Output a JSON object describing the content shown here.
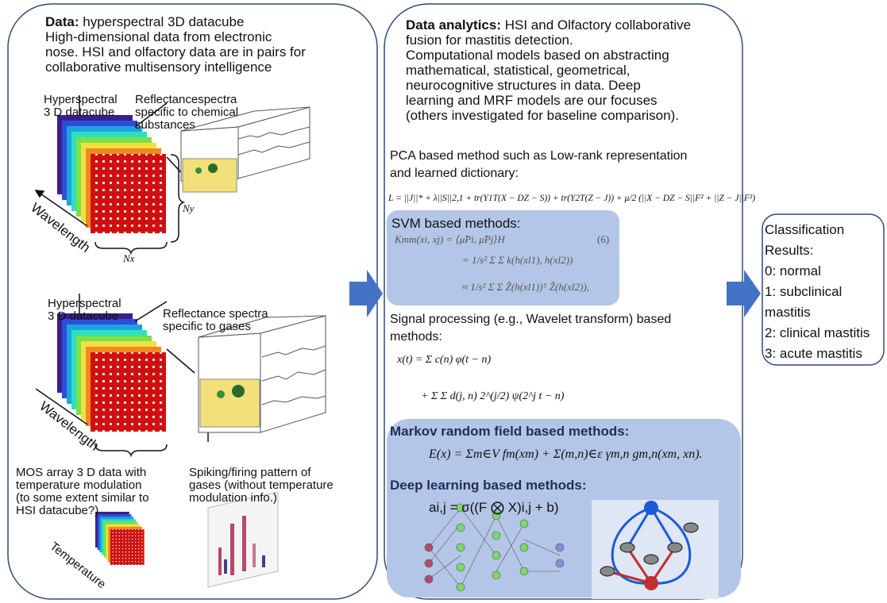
{
  "left": {
    "heading": "Data:",
    "heading_rest": " hyperspectral 3D datacube",
    "lines": [
      "High-dimensional data from electronic",
      "nose. HSI and olfactory data are in pairs for",
      "collaborative multisensory intelligence"
    ],
    "cube1_label": [
      "Hyperspectral",
      "3 D datacube"
    ],
    "spectra1_label": [
      "Reflectancespectra",
      "specific to chemical",
      "substances"
    ],
    "wavelength1": "Wavelength",
    "ny": "Ny",
    "nx": "Nx",
    "cube2_label": [
      "Hyperspectral",
      "3 D datacube"
    ],
    "spectra2_label": [
      "Reflectance spectra",
      "specific to gases"
    ],
    "wavelength2": "Wavelength",
    "mos_label": [
      "MOS array 3 D data with",
      "temperature modulation",
      "(to some extent similar to",
      "HSI datacube?)"
    ],
    "spiking_label": [
      "Spiking/firing pattern of",
      "gases (without temperature",
      "modulation info.)"
    ],
    "temperature": "Temperature"
  },
  "middle": {
    "heading": "Data analytics:",
    "heading_rest": " HSI and Olfactory collaborative",
    "lines": [
      "fusion for mastitis detection.",
      "Computational models based on abstracting",
      "mathematical, statistical, geometrical,",
      "neurocognitive structures in data. Deep",
      "learning and MRF models are our focuses",
      "(others investigated for baseline comparison)."
    ],
    "pca": [
      "PCA based method such as Low-rank representation",
      "and learned dictionary:"
    ],
    "pca_formula": "L = ||J||* + λ||S||2,1 + tr(Y1T(X − DZ − S)) + tr(Y2T(Z − J)) + μ/2 (||X − DZ − S||F² + ||Z − J||F²)",
    "svm": "SVM based methods:",
    "svm_formula": [
      "Kmm(xi, xj)  =  ⟨μ̂Pi, μ̂Pj⟩H",
      "=  1/s² Σ Σ k(h(xl1), h(xl2))",
      "≈  1/s² Σ Σ Ẑ(h(xl1))ᵀ Ẑ(h(xl2)),"
    ],
    "svm_eq_no": "(6)",
    "signal": [
      "Signal processing (e.g., Wavelet transform) based",
      "methods:"
    ],
    "signal_formula": [
      "x(t) = Σ c(n) φ(t − n)",
      "+ Σ Σ d(j, n) 2^(j/2) ψ(2^j t − n)"
    ],
    "mrf": "Markov random field based methods:",
    "mrf_formula": "E(x) = Σm∈V fm(xm) + Σ(m,n)∈ε γm,n gm,n(xm, xn).",
    "deep": "Deep learning based methods:",
    "deep_formula": "ai,j = σ((F ⨂ X)i,j + b)"
  },
  "right": {
    "lines": [
      "Classification",
      "Results:",
      "0: normal",
      "1: subclinical",
      "mastitis",
      "2: clinical mastitis",
      "3: acute mastitis"
    ]
  }
}
